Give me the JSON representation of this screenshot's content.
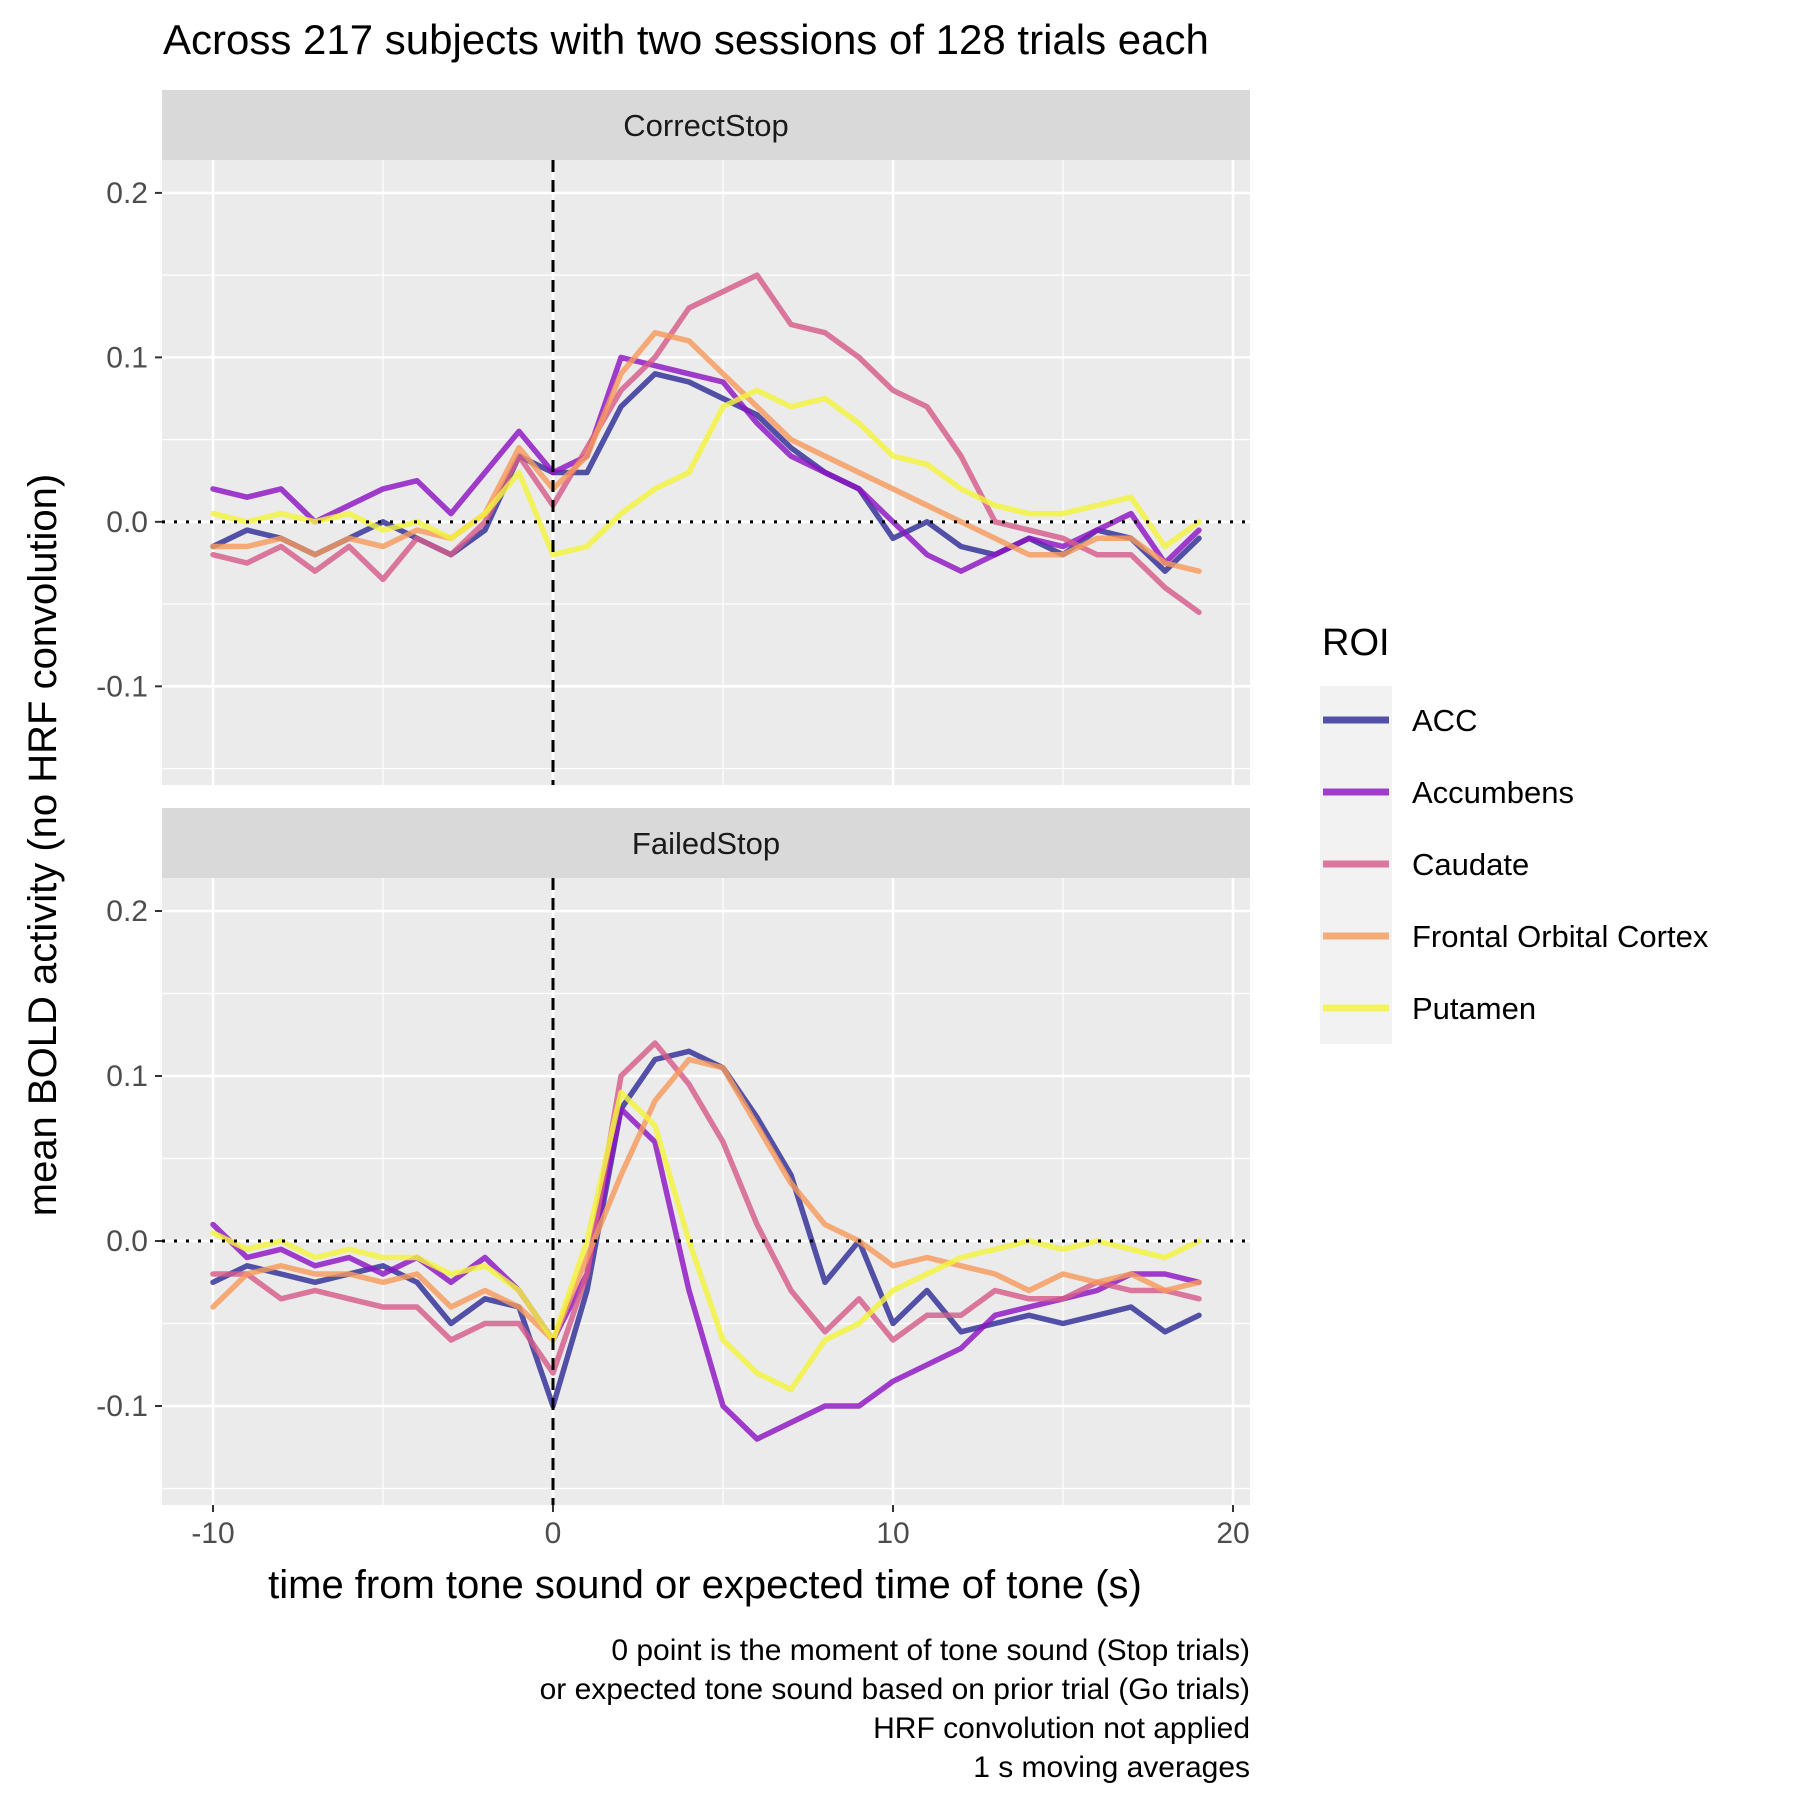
{
  "chart_data": {
    "type": "line",
    "title": "Across 217 subjects with two sessions of 128 trials each",
    "xlabel": "time from tone sound or expected time of tone (s)",
    "ylabel": "mean BOLD activity (no HRF convolution)",
    "caption": [
      "0 point is the moment of tone sound (Stop trials)",
      "or expected tone sound based on prior trial (Go trials)",
      "HRF convolution not applied",
      "1 s moving averages"
    ],
    "xlim": [
      -11.5,
      20.5
    ],
    "ylim": [
      -0.16,
      0.22
    ],
    "x_ticks": [
      -10,
      0,
      10,
      20
    ],
    "x_tick_labels": [
      "-10",
      "0",
      "10",
      "20"
    ],
    "y_ticks": [
      -0.1,
      0.0,
      0.1,
      0.2
    ],
    "y_tick_labels": [
      "-0.1",
      "0.0",
      "0.1",
      "0.2"
    ],
    "reference_lines": {
      "vertical_dashed_x": 0,
      "horizontal_dotted_y": 0
    },
    "legend": {
      "title": "ROI",
      "position": "right"
    },
    "grid": true,
    "x": [
      -10,
      -9,
      -8,
      -7,
      -6,
      -5,
      -4,
      -3,
      -2,
      -1,
      0,
      1,
      2,
      3,
      4,
      5,
      6,
      7,
      8,
      9,
      10,
      11,
      12,
      13,
      14,
      15,
      16,
      17,
      18,
      19
    ],
    "facets": [
      {
        "name": "CorrectStop",
        "series": [
          {
            "name": "ACC",
            "color": "#2e2d96",
            "values": [
              -0.015,
              -0.005,
              -0.01,
              -0.02,
              -0.01,
              0.0,
              -0.01,
              -0.02,
              -0.005,
              0.04,
              0.03,
              0.03,
              0.07,
              0.09,
              0.085,
              0.075,
              0.065,
              0.045,
              0.03,
              0.02,
              -0.01,
              0.0,
              -0.015,
              -0.02,
              -0.01,
              -0.02,
              -0.005,
              -0.01,
              -0.03,
              -0.01
            ]
          },
          {
            "name": "Accumbens",
            "color": "#8d14c2",
            "values": [
              0.02,
              0.015,
              0.02,
              0.0,
              0.01,
              0.02,
              0.025,
              0.005,
              0.03,
              0.055,
              0.03,
              0.04,
              0.1,
              0.095,
              0.09,
              0.085,
              0.06,
              0.04,
              0.03,
              0.02,
              0.0,
              -0.02,
              -0.03,
              -0.02,
              -0.01,
              -0.015,
              -0.005,
              0.005,
              -0.025,
              -0.005
            ]
          },
          {
            "name": "Caudate",
            "color": "#d55b8a",
            "values": [
              -0.02,
              -0.025,
              -0.015,
              -0.03,
              -0.015,
              -0.035,
              -0.01,
              -0.02,
              0.0,
              0.04,
              0.01,
              0.045,
              0.08,
              0.1,
              0.13,
              0.14,
              0.15,
              0.12,
              0.115,
              0.1,
              0.08,
              0.07,
              0.04,
              0.0,
              -0.005,
              -0.01,
              -0.02,
              -0.02,
              -0.04,
              -0.055
            ]
          },
          {
            "name": "Frontal Orbital Cortex",
            "color": "#f59a5b",
            "values": [
              -0.015,
              -0.015,
              -0.01,
              -0.02,
              -0.01,
              -0.015,
              -0.005,
              -0.01,
              0.005,
              0.045,
              0.02,
              0.04,
              0.09,
              0.115,
              0.11,
              0.09,
              0.07,
              0.05,
              0.04,
              0.03,
              0.02,
              0.01,
              0.0,
              -0.01,
              -0.02,
              -0.02,
              -0.01,
              -0.01,
              -0.025,
              -0.03
            ]
          },
          {
            "name": "Putamen",
            "color": "#f3f33c",
            "values": [
              0.005,
              0.0,
              0.005,
              0.0,
              0.005,
              -0.005,
              0.0,
              -0.01,
              0.005,
              0.03,
              -0.02,
              -0.015,
              0.005,
              0.02,
              0.03,
              0.07,
              0.08,
              0.07,
              0.075,
              0.06,
              0.04,
              0.035,
              0.02,
              0.01,
              0.005,
              0.005,
              0.01,
              0.015,
              -0.015,
              0.0
            ]
          }
        ]
      },
      {
        "name": "FailedStop",
        "series": [
          {
            "name": "ACC",
            "color": "#2e2d96",
            "values": [
              -0.025,
              -0.015,
              -0.02,
              -0.025,
              -0.02,
              -0.015,
              -0.025,
              -0.05,
              -0.035,
              -0.04,
              -0.1,
              -0.03,
              0.08,
              0.11,
              0.115,
              0.105,
              0.075,
              0.04,
              -0.025,
              0.0,
              -0.05,
              -0.03,
              -0.055,
              -0.05,
              -0.045,
              -0.05,
              -0.045,
              -0.04,
              -0.055,
              -0.045
            ]
          },
          {
            "name": "Accumbens",
            "color": "#8d14c2",
            "values": [
              0.01,
              -0.01,
              -0.005,
              -0.015,
              -0.01,
              -0.02,
              -0.01,
              -0.025,
              -0.01,
              -0.03,
              -0.06,
              -0.02,
              0.08,
              0.06,
              -0.03,
              -0.1,
              -0.12,
              -0.11,
              -0.1,
              -0.1,
              -0.085,
              -0.075,
              -0.065,
              -0.045,
              -0.04,
              -0.035,
              -0.03,
              -0.02,
              -0.02,
              -0.025
            ]
          },
          {
            "name": "Caudate",
            "color": "#d55b8a",
            "values": [
              -0.02,
              -0.02,
              -0.035,
              -0.03,
              -0.035,
              -0.04,
              -0.04,
              -0.06,
              -0.05,
              -0.05,
              -0.08,
              -0.02,
              0.1,
              0.12,
              0.095,
              0.06,
              0.01,
              -0.03,
              -0.055,
              -0.035,
              -0.06,
              -0.045,
              -0.045,
              -0.03,
              -0.035,
              -0.035,
              -0.025,
              -0.03,
              -0.03,
              -0.035
            ]
          },
          {
            "name": "Frontal Orbital Cortex",
            "color": "#f59a5b",
            "values": [
              -0.04,
              -0.02,
              -0.015,
              -0.02,
              -0.02,
              -0.025,
              -0.02,
              -0.04,
              -0.03,
              -0.04,
              -0.06,
              -0.01,
              0.04,
              0.085,
              0.11,
              0.105,
              0.07,
              0.035,
              0.01,
              0.0,
              -0.015,
              -0.01,
              -0.015,
              -0.02,
              -0.03,
              -0.02,
              -0.025,
              -0.02,
              -0.03,
              -0.025
            ]
          },
          {
            "name": "Putamen",
            "color": "#f3f33c",
            "values": [
              0.005,
              -0.005,
              0.0,
              -0.01,
              -0.005,
              -0.01,
              -0.01,
              -0.02,
              -0.015,
              -0.03,
              -0.06,
              0.0,
              0.09,
              0.07,
              0.0,
              -0.06,
              -0.08,
              -0.09,
              -0.06,
              -0.05,
              -0.03,
              -0.02,
              -0.01,
              -0.005,
              0.0,
              -0.005,
              0.0,
              -0.005,
              -0.01,
              0.0
            ]
          }
        ]
      }
    ]
  }
}
